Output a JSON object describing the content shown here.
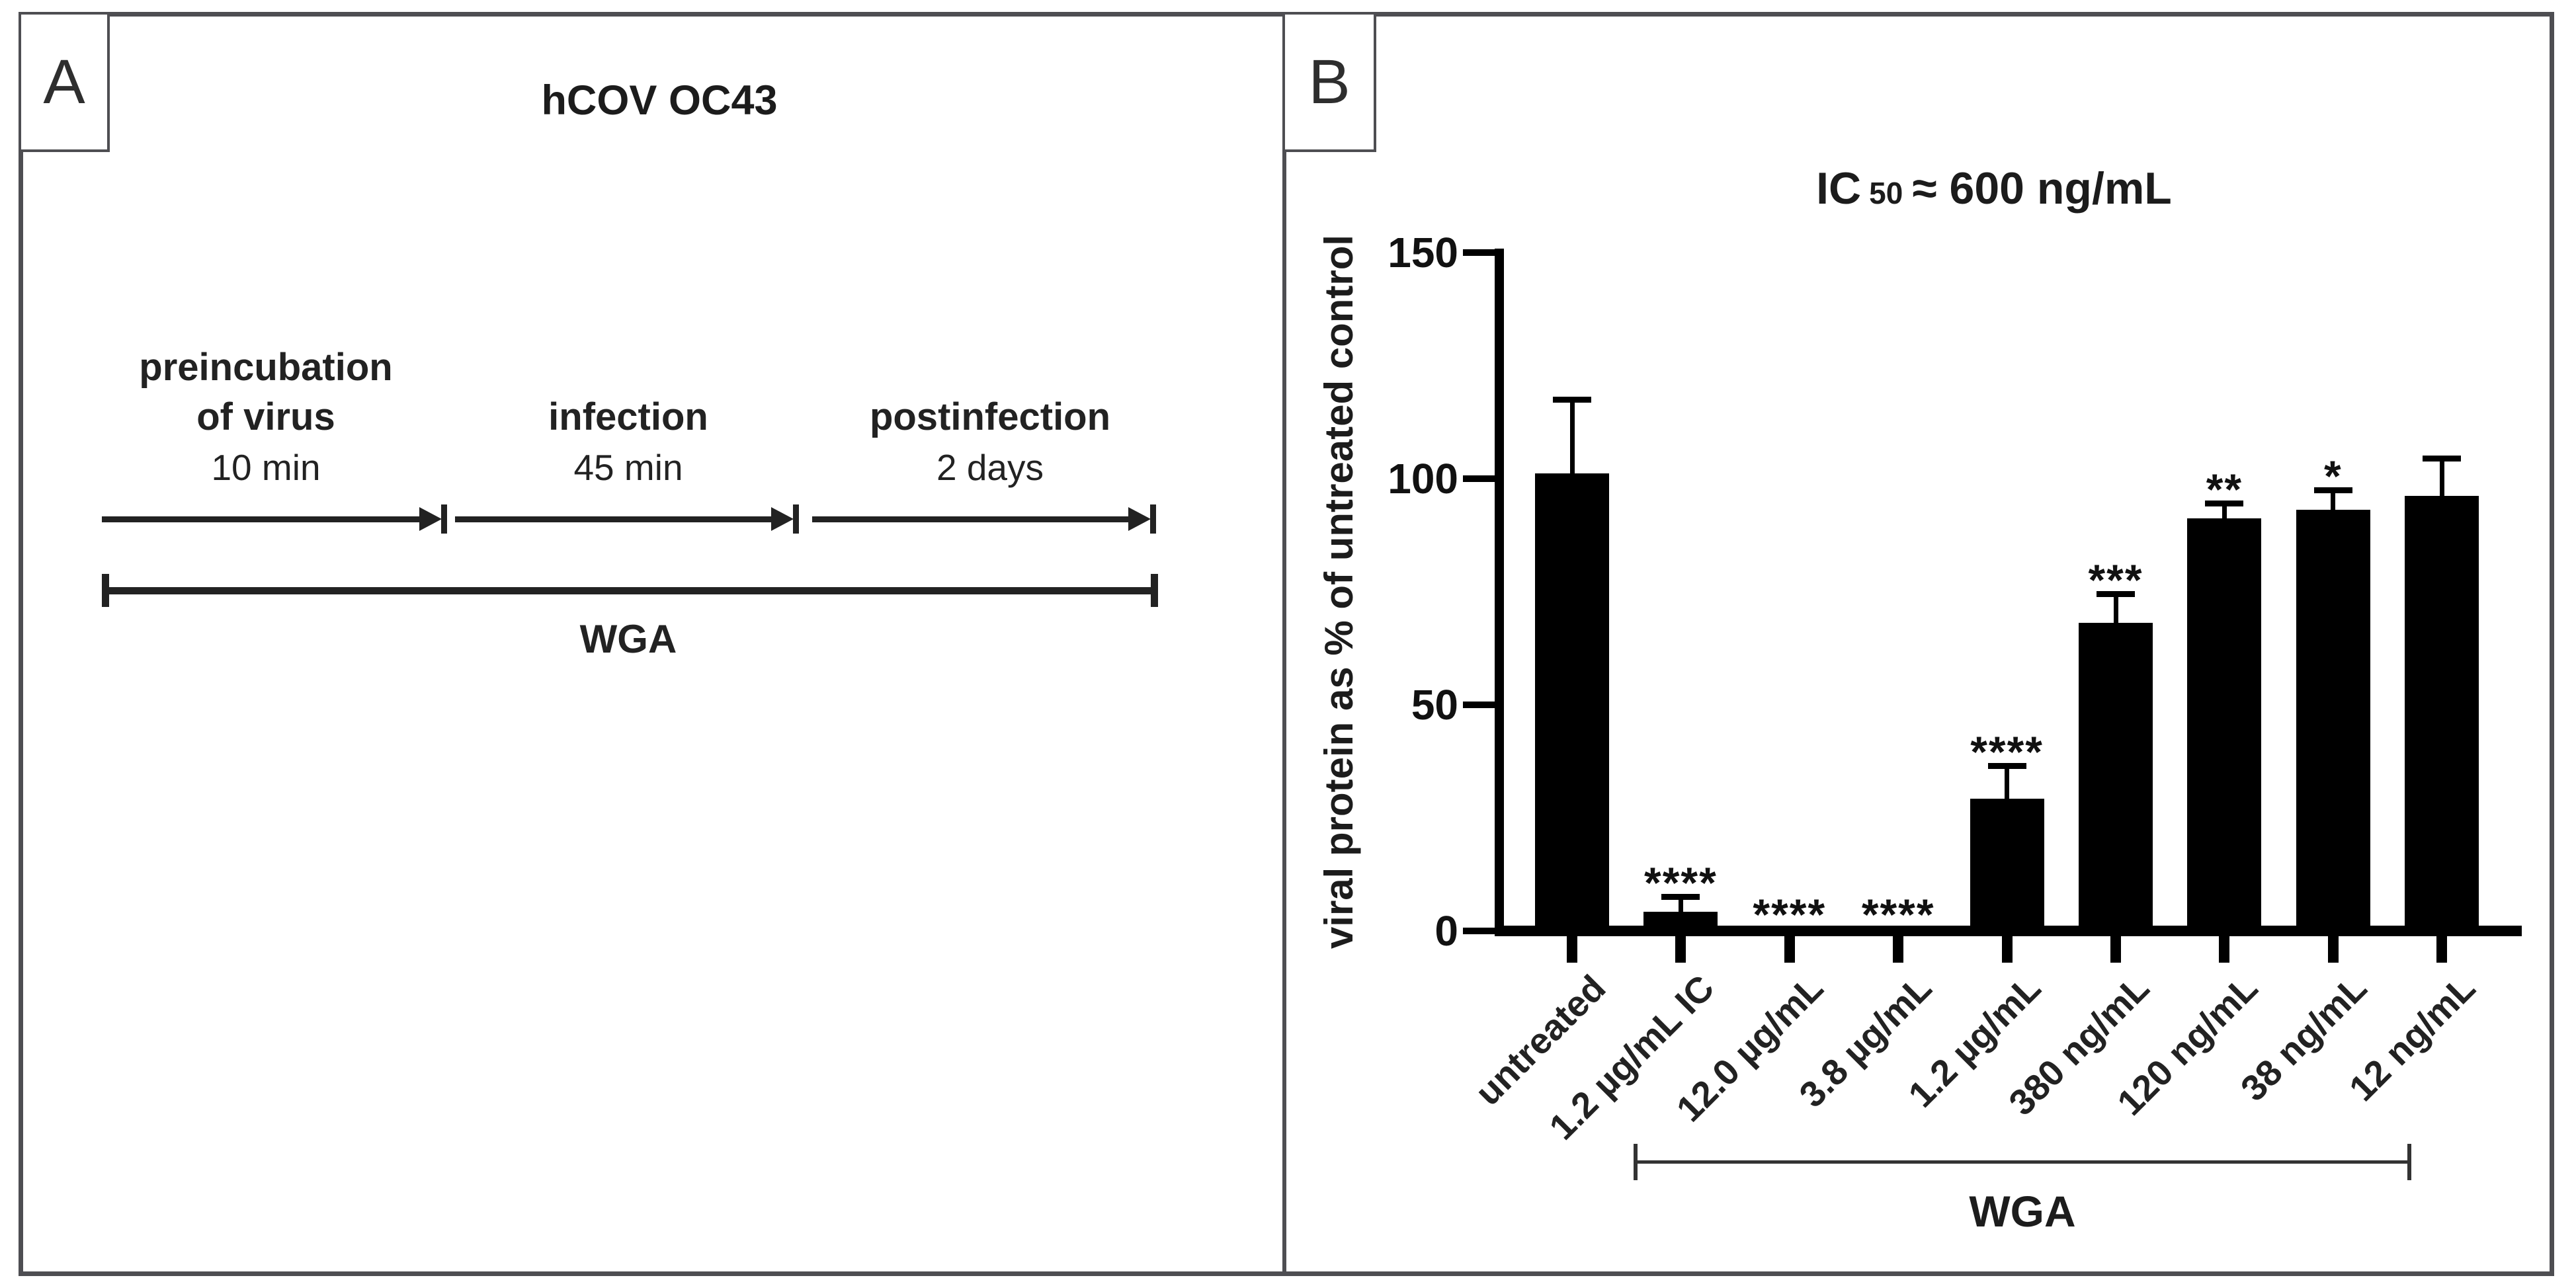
{
  "panel_a": {
    "label": "A",
    "title": "hCOV OC43",
    "timeline": {
      "phases": [
        {
          "name_lines": [
            "preincubation",
            "of virus"
          ],
          "duration": "10 min"
        },
        {
          "name_lines": [
            "infection"
          ],
          "duration": "45 min"
        },
        {
          "name_lines": [
            "postinfection"
          ],
          "duration": "2 days"
        }
      ],
      "treatment_label": "WGA"
    }
  },
  "panel_b": {
    "label": "B",
    "title": {
      "ic": "IC",
      "sub": "50",
      "rest": "≈ 600 ng/mL"
    },
    "y_axis_label": "viral protein as % of untreated control",
    "group_bracket_label": "WGA"
  },
  "chart_data": {
    "type": "bar",
    "title": "IC50 ≈ 600 ng/mL",
    "xlabel": "",
    "ylabel": "viral protein as % of untreated control",
    "categories": [
      "untreated",
      "1.2 µg/mL IC",
      "12.0 µg/mL",
      "3.8 µg/mL",
      "1.2 µg/mL",
      "380 ng/mL",
      "120 ng/mL",
      "38 ng/mL",
      "12 ng/mL"
    ],
    "values": [
      100,
      3,
      0,
      0,
      28,
      67,
      90,
      92,
      95
    ],
    "errors": [
      17,
      4,
      0,
      0,
      8,
      7,
      4,
      5,
      9
    ],
    "significance": [
      "",
      "****",
      "****",
      "****",
      "****",
      "***",
      "**",
      "*",
      ""
    ],
    "ylim": [
      0,
      150
    ],
    "yticks": [
      150,
      100,
      50,
      0
    ],
    "grid": false,
    "legend": false,
    "bar_color": "#000000",
    "group_bracket": {
      "label": "WGA",
      "from_category_index": 1,
      "to_category_index": 8
    }
  }
}
